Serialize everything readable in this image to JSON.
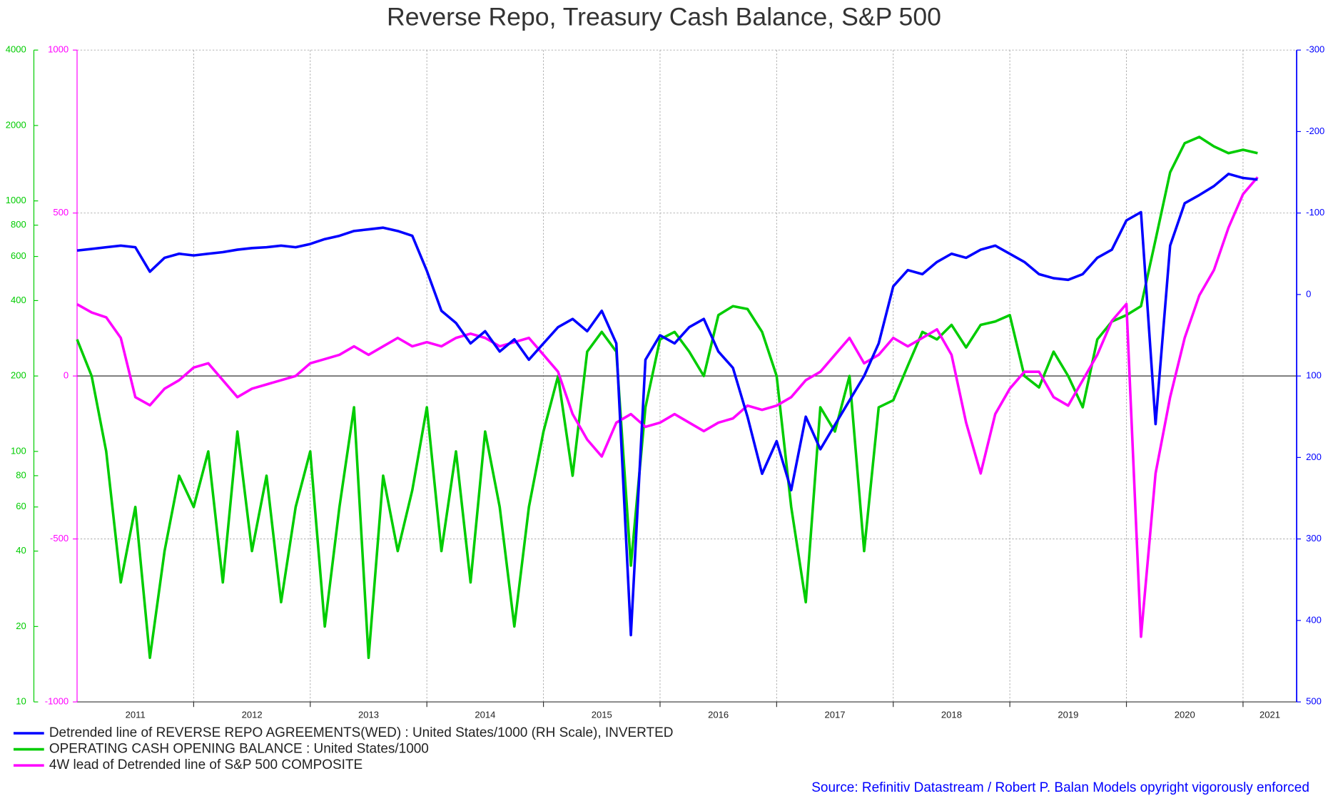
{
  "chart_data": {
    "type": "line",
    "title": "Reverse Repo, Treasury Cash Balance, S&P 500",
    "source": "Source: Refinitiv Datastream /  Robert P. Balan Models opyright vigorously enforced",
    "x": [
      2011,
      2011.125,
      2011.25,
      2011.375,
      2011.5,
      2011.625,
      2011.75,
      2011.875,
      2012,
      2012.125,
      2012.25,
      2012.375,
      2012.5,
      2012.625,
      2012.75,
      2012.875,
      2013,
      2013.125,
      2013.25,
      2013.375,
      2013.5,
      2013.625,
      2013.75,
      2013.875,
      2014,
      2014.125,
      2014.25,
      2014.375,
      2014.5,
      2014.625,
      2014.75,
      2014.875,
      2015,
      2015.125,
      2015.25,
      2015.375,
      2015.5,
      2015.625,
      2015.75,
      2015.875,
      2016,
      2016.125,
      2016.25,
      2016.375,
      2016.5,
      2016.625,
      2016.75,
      2016.875,
      2017,
      2017.125,
      2017.25,
      2017.375,
      2017.5,
      2017.625,
      2017.75,
      2017.875,
      2018,
      2018.125,
      2018.25,
      2018.375,
      2018.5,
      2018.625,
      2018.75,
      2018.875,
      2019,
      2019.125,
      2019.25,
      2019.375,
      2019.5,
      2019.625,
      2019.75,
      2019.875,
      2020,
      2020.125,
      2020.25,
      2020.375,
      2020.5,
      2020.625,
      2020.75,
      2020.875,
      2021,
      2021.125
    ],
    "xlim": [
      2011,
      2021.46
    ],
    "xticks": [
      {
        "value": 2011.5,
        "label": "2011"
      },
      {
        "value": 2012.5,
        "label": "2012"
      },
      {
        "value": 2013.5,
        "label": "2013"
      },
      {
        "value": 2014.5,
        "label": "2014"
      },
      {
        "value": 2015.5,
        "label": "2015"
      },
      {
        "value": 2016.5,
        "label": "2016"
      },
      {
        "value": 2017.5,
        "label": "2017"
      },
      {
        "value": 2018.5,
        "label": "2018"
      },
      {
        "value": 2019.5,
        "label": "2019"
      },
      {
        "value": 2020.5,
        "label": "2020"
      },
      {
        "value": 2021.23,
        "label": "2021"
      }
    ],
    "xgrid": [
      2012,
      2013,
      2014,
      2015,
      2016,
      2017,
      2018,
      2019,
      2020,
      2021
    ],
    "ylim": [
      10,
      4000
    ],
    "yscale": "log",
    "ycolor": "#00cc00",
    "yticks": [
      10,
      20,
      40,
      60,
      80,
      100,
      200,
      400,
      600,
      800,
      1000,
      2000,
      4000
    ],
    "y2lim": [
      -1000,
      1000
    ],
    "y2color": "#ff00ff",
    "y2ticks": [
      -1000,
      -500,
      0,
      500,
      1000
    ],
    "y3lim": [
      -300,
      500
    ],
    "y3_inverted": true,
    "y3color": "#0000ff",
    "y3ticks": [
      -300,
      -200,
      -100,
      0,
      100,
      200,
      300,
      400,
      500
    ],
    "grid": true,
    "zero_line": true,
    "series": [
      {
        "name": "Detrended line of REVERSE REPO AGREEMENTS(WED) : United States/1000 (RH Scale), INVERTED",
        "color": "#0000ff",
        "axis": "y3",
        "values": [
          -54,
          -56,
          -58,
          -60,
          -58,
          -28,
          -45,
          -50,
          -48,
          -50,
          -52,
          -55,
          -57,
          -58,
          -60,
          -58,
          -62,
          -68,
          -72,
          -78,
          -80,
          -82,
          -78,
          -72,
          -29,
          20,
          35,
          60,
          45,
          70,
          55,
          80,
          60,
          40,
          30,
          45,
          20,
          60,
          418,
          80,
          50,
          60,
          40,
          30,
          70,
          90,
          150,
          220,
          180,
          240,
          150,
          190,
          160,
          130,
          100,
          60,
          -10,
          -30,
          -25,
          -40,
          -50,
          -45,
          -55,
          -60,
          -50,
          -40,
          -25,
          -20,
          -18,
          -25,
          -45,
          -55,
          -91,
          -101,
          159,
          -60,
          -112,
          -122,
          -133,
          -148,
          -143,
          -141
        ]
      },
      {
        "name": "OPERATING CASH OPENING BALANCE : United States/1000",
        "color": "#00cc00",
        "axis": "y",
        "values": [
          280,
          200,
          100,
          30,
          60,
          15,
          40,
          80,
          60,
          100,
          30,
          120,
          40,
          80,
          25,
          60,
          100,
          20,
          60,
          150,
          15,
          80,
          40,
          70,
          150,
          40,
          100,
          30,
          120,
          60,
          20,
          60,
          120,
          200,
          80,
          250,
          300,
          250,
          35,
          150,
          280,
          300,
          250,
          200,
          350,
          380,
          370,
          300,
          200,
          60,
          25,
          150,
          120,
          200,
          40,
          150,
          160,
          220,
          300,
          280,
          320,
          260,
          320,
          330,
          350,
          200,
          180,
          250,
          200,
          150,
          280,
          330,
          350,
          380,
          700,
          1300,
          1700,
          1800,
          1650,
          1550,
          1600,
          1550
        ]
      },
      {
        "name": "4W lead of Detrended line of S&P 500 COMPOSITE",
        "color": "#ff00ff",
        "axis": "y2",
        "values": [
          220,
          195,
          180,
          117,
          -65,
          -90,
          -39,
          -13,
          26,
          39,
          -13,
          -65,
          -39,
          -26,
          -13,
          0,
          39,
          52,
          65,
          91,
          65,
          91,
          117,
          91,
          104,
          91,
          117,
          130,
          117,
          91,
          104,
          117,
          65,
          13,
          -117,
          -195,
          -247,
          -143,
          -117,
          -156,
          -143,
          -117,
          -143,
          -169,
          -143,
          -130,
          -91,
          -104,
          -91,
          -65,
          -13,
          13,
          65,
          117,
          39,
          65,
          117,
          91,
          117,
          143,
          65,
          -143,
          -299,
          -117,
          -39,
          13,
          13,
          -65,
          -91,
          -13,
          65,
          169,
          221,
          -800,
          -299,
          -65,
          117,
          247,
          325,
          455,
          558,
          610
        ]
      }
    ]
  }
}
